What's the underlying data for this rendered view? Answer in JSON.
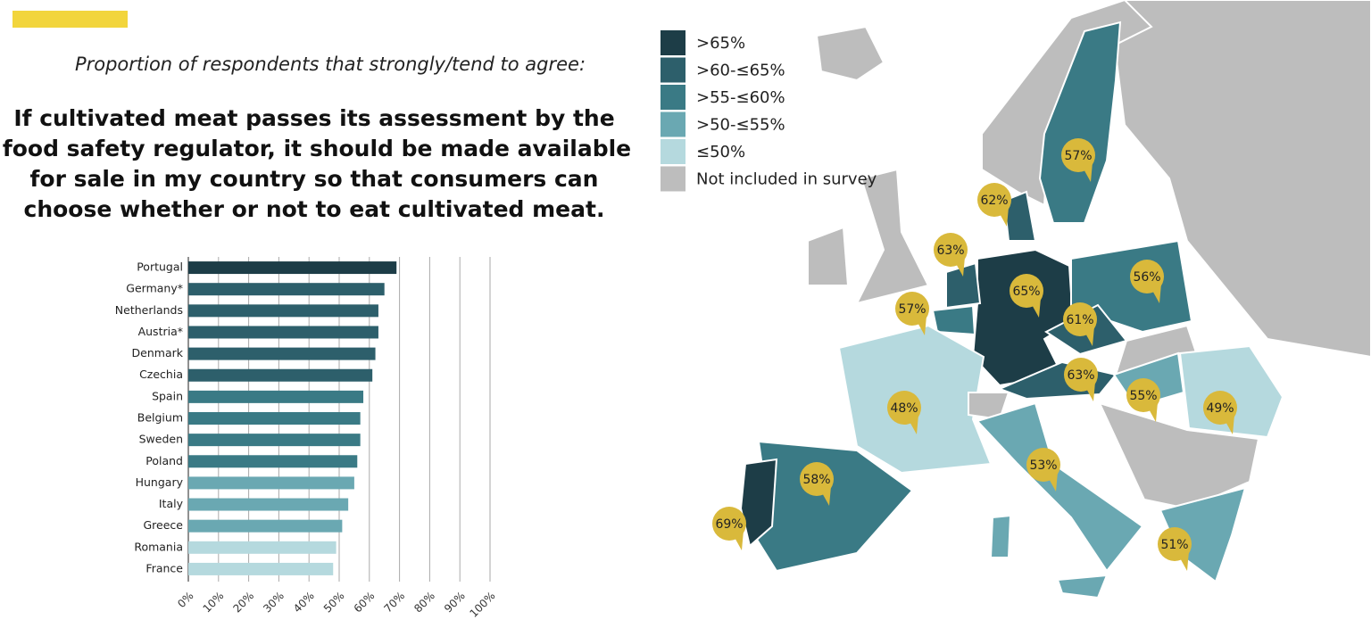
{
  "header": {
    "subtitle": "Proportion of respondents that strongly/tend to agree:",
    "title_lines": [
      "If cultivated meat passes its assessment by the",
      "food safety regulator, it should be made available",
      "for sale in my country so that consumers can",
      "choose whether or not to eat cultivated meat."
    ]
  },
  "chart_data": {
    "type": "hbar",
    "categories": [
      "Portugal",
      "Germany*",
      "Netherlands",
      "Austria*",
      "Denmark",
      "Czechia",
      "Spain",
      "Belgium",
      "Sweden",
      "Poland",
      "Hungary",
      "Italy",
      "Greece",
      "Romania",
      "France"
    ],
    "values": [
      69,
      65,
      63,
      63,
      62,
      61,
      58,
      57,
      57,
      56,
      55,
      53,
      51,
      49,
      48
    ],
    "colors": [
      "#1d3d47",
      "#2d5f6b",
      "#2d5f6b",
      "#2d5f6b",
      "#2d5f6b",
      "#2d5f6b",
      "#3a7a85",
      "#3a7a85",
      "#3a7a85",
      "#3a7a85",
      "#6aa8b2",
      "#6aa8b2",
      "#6aa8b2",
      "#b5d9de",
      "#b5d9de"
    ],
    "xlim": [
      0,
      100
    ],
    "xticks": [
      {
        "value": 0,
        "label": "0%"
      },
      {
        "value": 10,
        "label": "10%"
      },
      {
        "value": 20,
        "label": "20%"
      },
      {
        "value": 30,
        "label": "30%"
      },
      {
        "value": 40,
        "label": "40%"
      },
      {
        "value": 50,
        "label": "50%"
      },
      {
        "value": 60,
        "label": "60%"
      },
      {
        "value": 70,
        "label": "70%"
      },
      {
        "value": 80,
        "label": "80%"
      },
      {
        "value": 90,
        "label": "90%"
      },
      {
        "value": 100,
        "label": "100%"
      }
    ],
    "grid": true
  },
  "map": {
    "legend": [
      {
        "label": ">65%",
        "color": "#1d3d47"
      },
      {
        "label": ">60-≤65%",
        "color": "#2d5f6b"
      },
      {
        "label": ">55-≤60%",
        "color": "#3a7a85"
      },
      {
        "label": ">50-≤55%",
        "color": "#6aa8b2"
      },
      {
        "label": "≤50%",
        "color": "#b5d9de"
      },
      {
        "label": "Not included in survey",
        "color": "#bdbdbd"
      }
    ],
    "labels": [
      "57%",
      "62%",
      "63%",
      "57%",
      "65%",
      "56%",
      "61%",
      "63%",
      "55%",
      "49%",
      "48%",
      "53%",
      "58%",
      "69%",
      "51%"
    ]
  }
}
